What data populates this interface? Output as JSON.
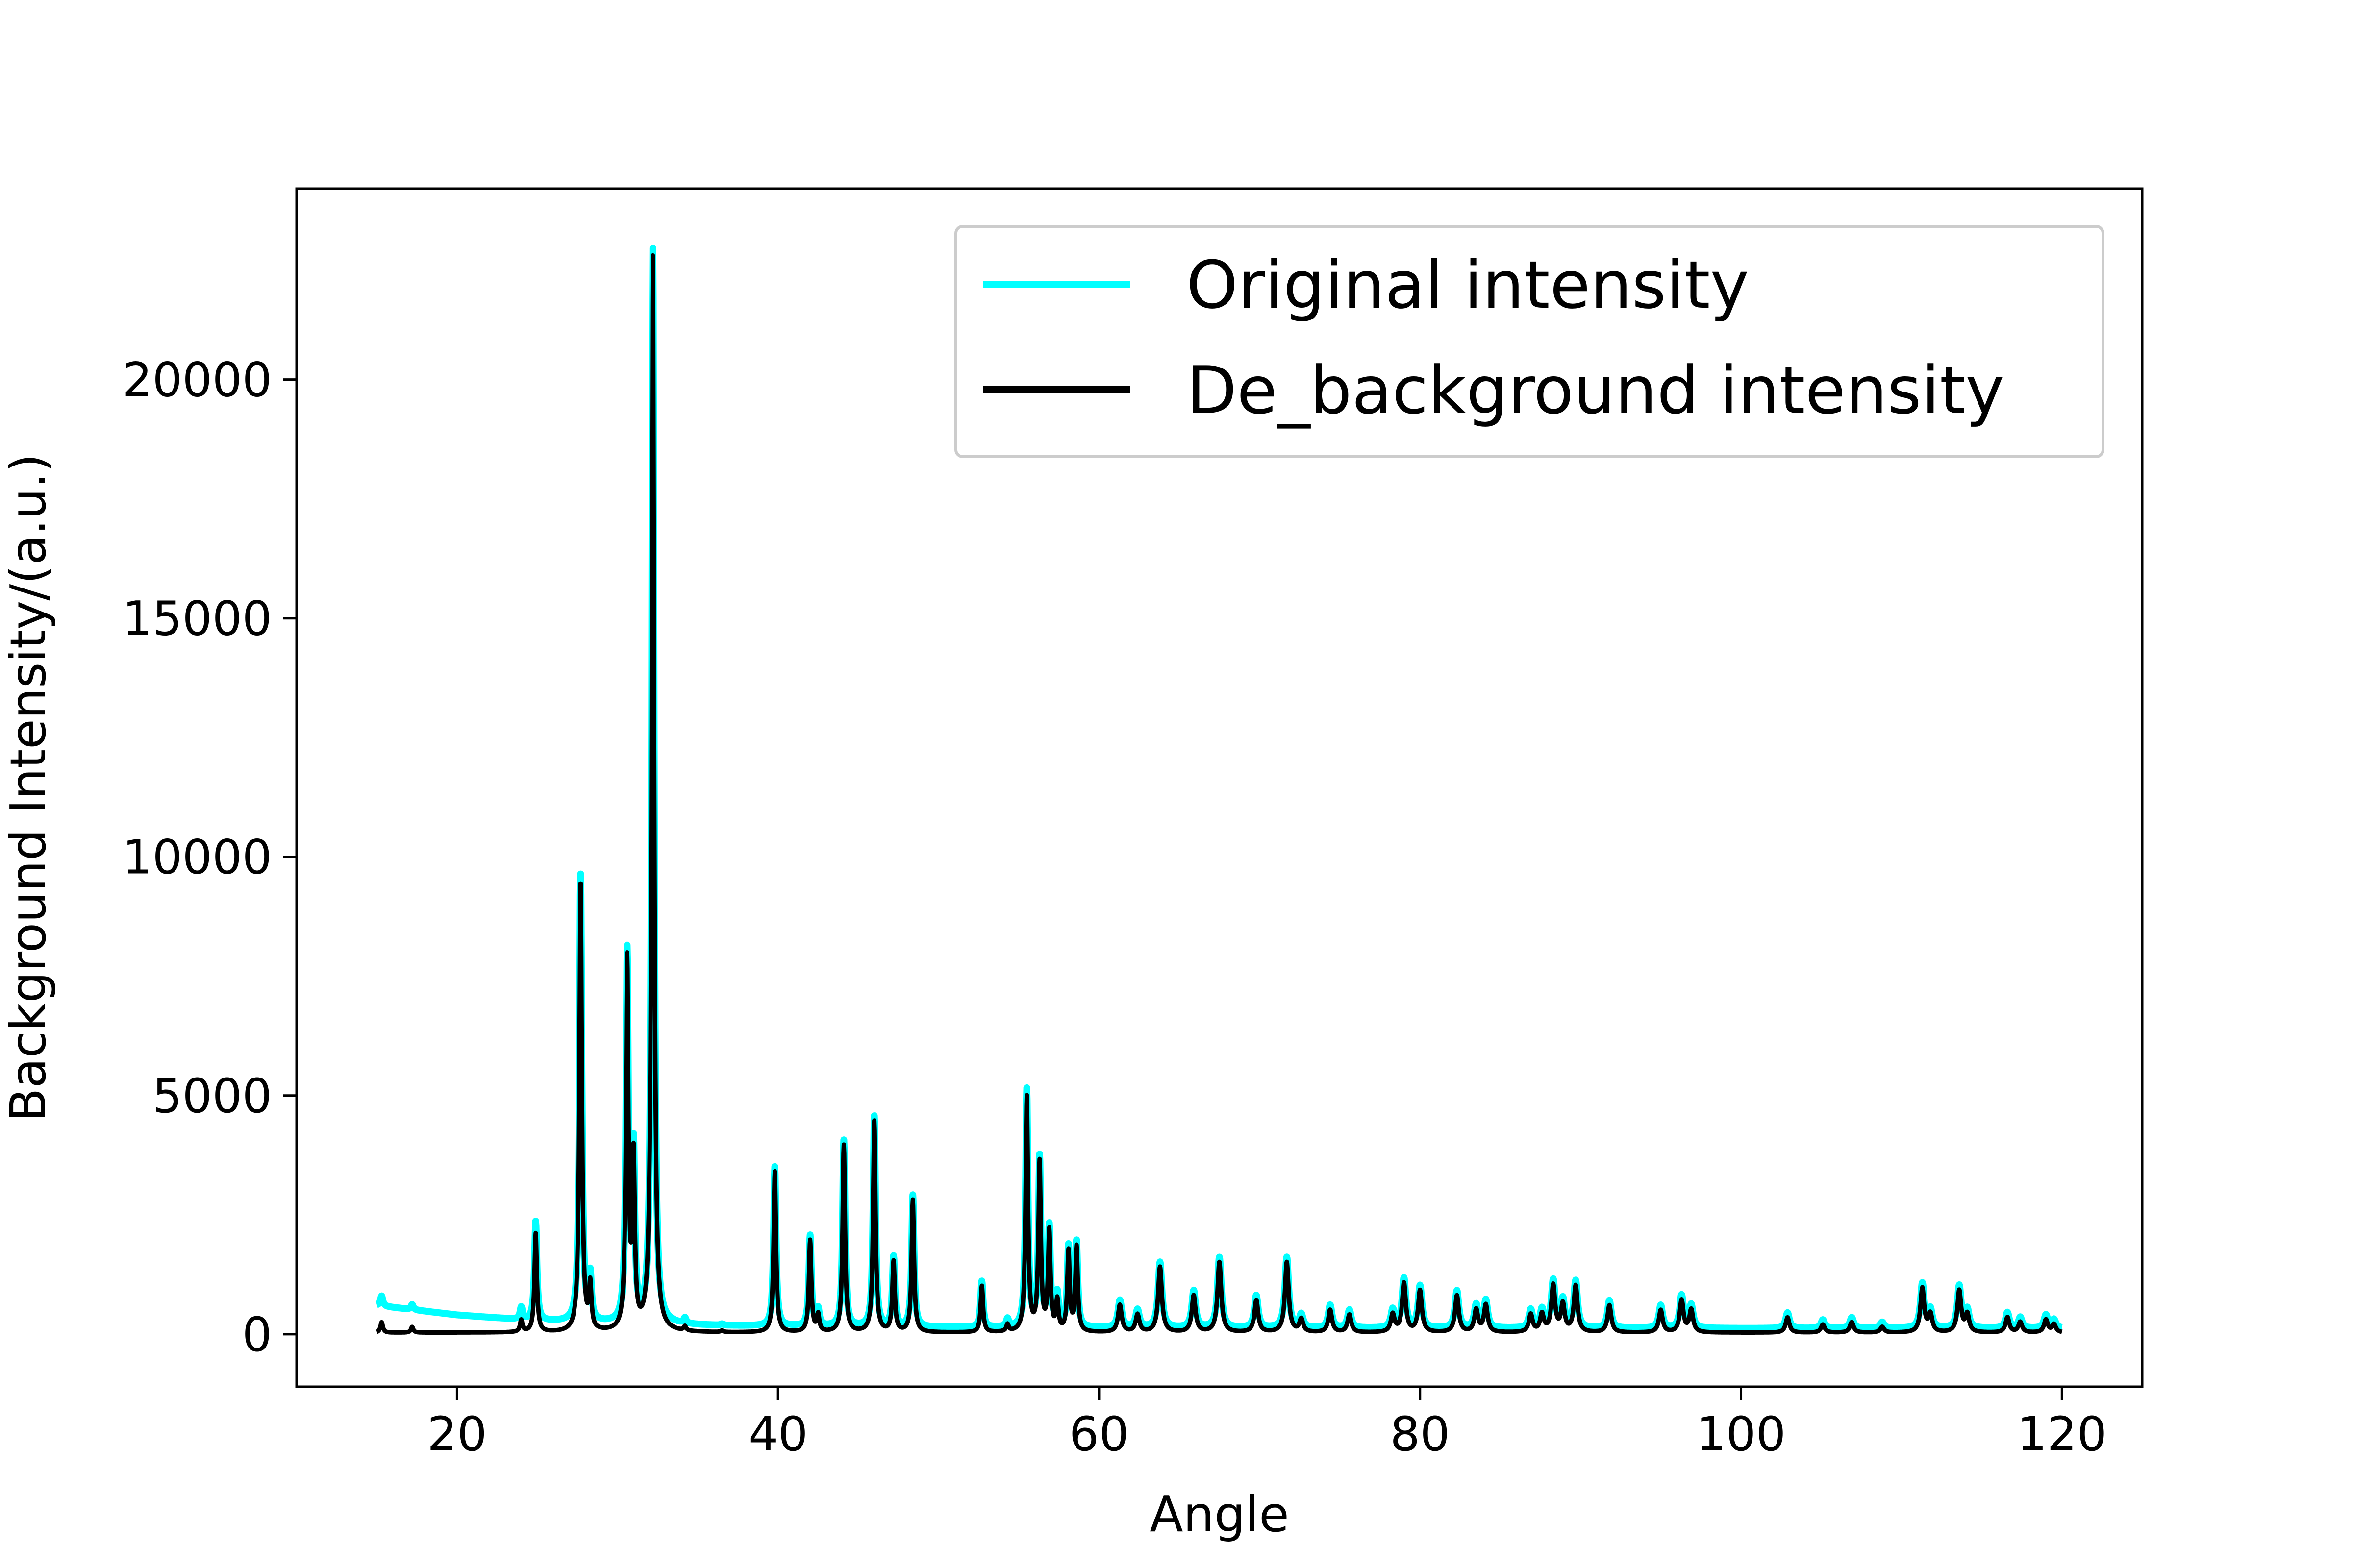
{
  "chart_data": {
    "type": "line",
    "title": "",
    "xlabel": "Angle",
    "ylabel": "Background Intensity/(a.u.)",
    "xlim": [
      10,
      125
    ],
    "ylim": [
      -1100,
      24000
    ],
    "x_ticks": [
      20,
      40,
      60,
      80,
      100,
      120
    ],
    "y_ticks": [
      0,
      5000,
      10000,
      15000,
      20000
    ],
    "grid": false,
    "legend_position": "top-right",
    "x_range": [
      15,
      120
    ],
    "series": [
      {
        "name": "Original intensity",
        "color": "#00ffff",
        "baseline": [
          [
            15,
            600
          ],
          [
            20,
            400
          ],
          [
            25,
            270
          ],
          [
            30,
            210
          ],
          [
            35,
            180
          ],
          [
            40,
            160
          ],
          [
            50,
            140
          ],
          [
            60,
            130
          ],
          [
            80,
            120
          ],
          [
            100,
            120
          ],
          [
            120,
            120
          ]
        ],
        "peaks": [
          [
            15.3,
            800
          ],
          [
            17.2,
            620
          ],
          [
            24.0,
            550
          ],
          [
            24.9,
            2350
          ],
          [
            27.7,
            9600
          ],
          [
            28.3,
            1150
          ],
          [
            30.6,
            7900
          ],
          [
            31.0,
            3700
          ],
          [
            32.2,
            22700
          ],
          [
            34.2,
            300
          ],
          [
            36.5,
            200
          ],
          [
            39.8,
            3500
          ],
          [
            42.0,
            2050
          ],
          [
            42.5,
            500
          ],
          [
            44.1,
            4050
          ],
          [
            46.0,
            4550
          ],
          [
            47.2,
            1600
          ],
          [
            48.4,
            2900
          ],
          [
            52.7,
            1100
          ],
          [
            54.3,
            300
          ],
          [
            55.5,
            5100
          ],
          [
            56.3,
            3650
          ],
          [
            56.9,
            2200
          ],
          [
            57.4,
            800
          ],
          [
            58.1,
            1800
          ],
          [
            58.6,
            1900
          ],
          [
            61.3,
            700
          ],
          [
            62.4,
            500
          ],
          [
            63.8,
            1500
          ],
          [
            65.9,
            900
          ],
          [
            67.5,
            1600
          ],
          [
            69.8,
            800
          ],
          [
            71.7,
            1600
          ],
          [
            72.6,
            400
          ],
          [
            74.4,
            600
          ],
          [
            75.6,
            500
          ],
          [
            78.3,
            500
          ],
          [
            79.0,
            1150
          ],
          [
            80.0,
            1000
          ],
          [
            82.3,
            900
          ],
          [
            83.5,
            600
          ],
          [
            84.1,
            700
          ],
          [
            86.9,
            500
          ],
          [
            87.6,
            500
          ],
          [
            88.3,
            1100
          ],
          [
            88.9,
            700
          ],
          [
            89.7,
            1100
          ],
          [
            91.8,
            700
          ],
          [
            95.0,
            600
          ],
          [
            96.3,
            800
          ],
          [
            96.9,
            600
          ],
          [
            102.9,
            450
          ],
          [
            105.1,
            300
          ],
          [
            106.9,
            350
          ],
          [
            108.8,
            250
          ],
          [
            111.3,
            1050
          ],
          [
            111.8,
            500
          ],
          [
            113.6,
            1000
          ],
          [
            114.1,
            500
          ],
          [
            116.6,
            450
          ],
          [
            117.4,
            350
          ],
          [
            119.0,
            400
          ],
          [
            119.5,
            300
          ]
        ]
      },
      {
        "name": "De_background intensity",
        "color": "#000000",
        "baseline": [
          [
            15,
            30
          ],
          [
            120,
            30
          ]
        ],
        "peaks": [
          [
            15.3,
            250
          ],
          [
            17.2,
            150
          ],
          [
            24.0,
            280
          ],
          [
            24.9,
            2100
          ],
          [
            27.7,
            9400
          ],
          [
            28.3,
            950
          ],
          [
            30.6,
            7750
          ],
          [
            31.0,
            3500
          ],
          [
            32.2,
            22550
          ],
          [
            34.2,
            120
          ],
          [
            36.5,
            60
          ],
          [
            39.8,
            3400
          ],
          [
            42.0,
            1950
          ],
          [
            42.5,
            380
          ],
          [
            44.1,
            3950
          ],
          [
            46.0,
            4450
          ],
          [
            47.2,
            1500
          ],
          [
            48.4,
            2800
          ],
          [
            52.7,
            1000
          ],
          [
            54.3,
            180
          ],
          [
            55.5,
            4950
          ],
          [
            56.3,
            3550
          ],
          [
            56.9,
            2100
          ],
          [
            57.4,
            650
          ],
          [
            58.1,
            1700
          ],
          [
            58.6,
            1800
          ],
          [
            61.3,
            600
          ],
          [
            62.4,
            400
          ],
          [
            63.8,
            1400
          ],
          [
            65.9,
            800
          ],
          [
            67.5,
            1500
          ],
          [
            69.8,
            700
          ],
          [
            71.7,
            1500
          ],
          [
            72.6,
            300
          ],
          [
            74.4,
            500
          ],
          [
            75.6,
            400
          ],
          [
            78.3,
            400
          ],
          [
            79.0,
            1050
          ],
          [
            80.0,
            900
          ],
          [
            82.3,
            800
          ],
          [
            83.5,
            500
          ],
          [
            84.1,
            600
          ],
          [
            86.9,
            400
          ],
          [
            87.6,
            400
          ],
          [
            88.3,
            1000
          ],
          [
            88.9,
            600
          ],
          [
            89.7,
            1000
          ],
          [
            91.8,
            600
          ],
          [
            95.0,
            500
          ],
          [
            96.3,
            700
          ],
          [
            96.9,
            500
          ],
          [
            102.9,
            350
          ],
          [
            105.1,
            200
          ],
          [
            106.9,
            250
          ],
          [
            108.8,
            150
          ],
          [
            111.3,
            950
          ],
          [
            111.8,
            400
          ],
          [
            113.6,
            900
          ],
          [
            114.1,
            400
          ],
          [
            116.6,
            350
          ],
          [
            117.4,
            250
          ],
          [
            119.0,
            300
          ],
          [
            119.5,
            200
          ]
        ]
      }
    ]
  }
}
